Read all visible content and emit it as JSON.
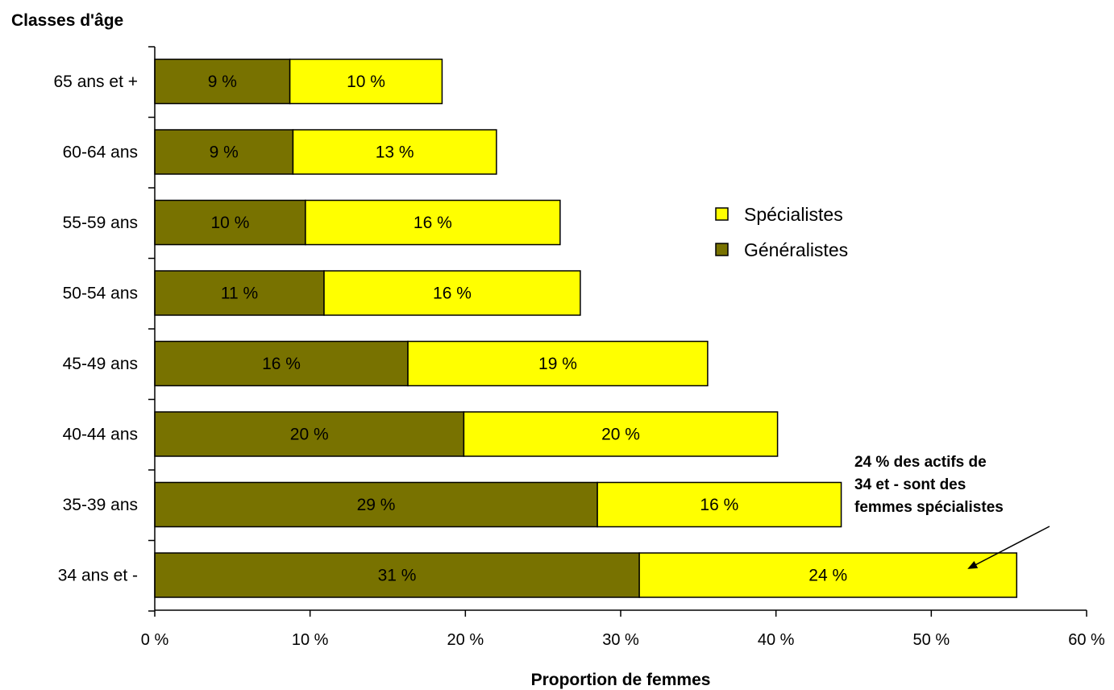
{
  "chart_data": {
    "type": "bar",
    "orientation": "horizontal",
    "stacked": true,
    "ylabel": "Classes d'âge",
    "xlabel": "Proportion de femmes",
    "categories": [
      "65 ans et +",
      "60-64 ans",
      "55-59 ans",
      "50-54 ans",
      "45-49 ans",
      "40-44 ans",
      "35-39 ans",
      "34 ans et -"
    ],
    "series": [
      {
        "name": "Généralistes",
        "color": "#787200",
        "values": [
          8.7,
          8.9,
          9.7,
          10.9,
          16.3,
          19.9,
          28.5,
          31.2
        ],
        "labels": [
          "9 %",
          "9 %",
          "10 %",
          "11 %",
          "16 %",
          "20 %",
          "29 %",
          "31 %"
        ]
      },
      {
        "name": "Spécialistes",
        "color": "#ffff00",
        "values": [
          9.8,
          13.1,
          16.4,
          16.5,
          19.3,
          20.2,
          15.7,
          24.3
        ],
        "labels": [
          "10 %",
          "13 %",
          "16 %",
          "16 %",
          "19 %",
          "20 %",
          "16 %",
          "24 %"
        ]
      }
    ],
    "xlim": [
      0,
      60
    ],
    "xticks": [
      {
        "value": 0,
        "label": "0 %"
      },
      {
        "value": 10,
        "label": "10 %"
      },
      {
        "value": 20,
        "label": "20 %"
      },
      {
        "value": 30,
        "label": "30 %"
      },
      {
        "value": 40,
        "label": "40 %"
      },
      {
        "value": 50,
        "label": "50 %"
      },
      {
        "value": 60,
        "label": "60 %"
      }
    ],
    "grid": false,
    "legend": {
      "placement": "right",
      "entries": [
        "Spécialistes",
        "Généralistes"
      ]
    },
    "annotation": {
      "lines": [
        "24 % des actifs de",
        "34 et - sont des",
        "femmes spécialistes"
      ],
      "points_to": {
        "category": "34 ans et -",
        "x": 52.5
      }
    }
  }
}
